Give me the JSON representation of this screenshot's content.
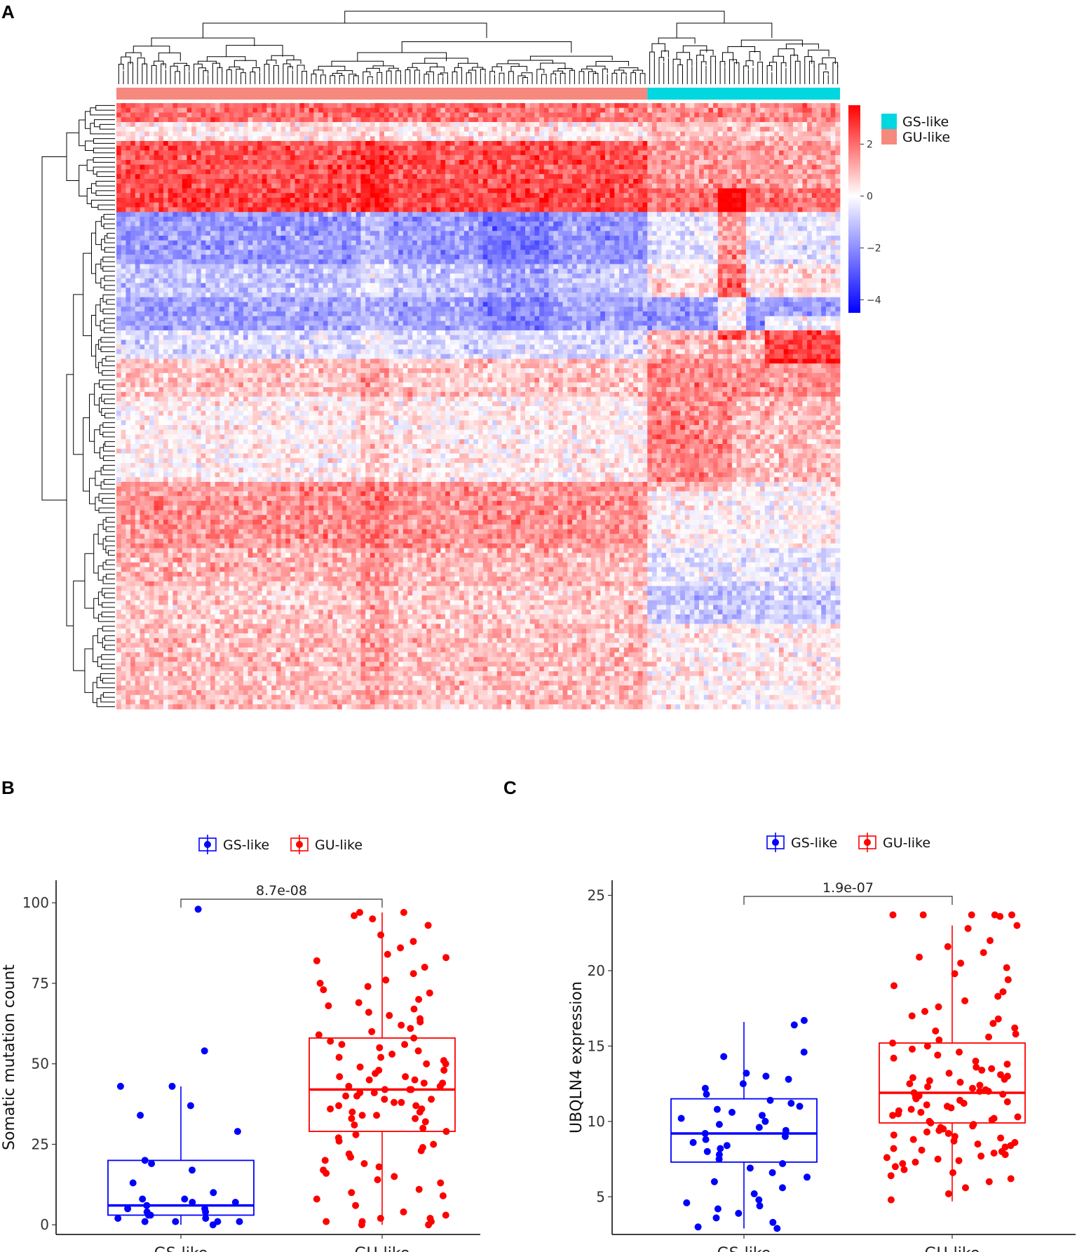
{
  "panels": {
    "a": "A",
    "b": "B",
    "c": "C"
  },
  "colors": {
    "gs": "#00d7e0",
    "gu": "#f6897e",
    "blue": "#0000ff",
    "red": "#ff0000",
    "white": "#ffffff"
  },
  "heatmap": {
    "groups": [
      "GS-like",
      "GU-like"
    ],
    "gu_columns": 113,
    "gs_columns": 41,
    "rows": 128,
    "colorbar_ticks": [
      "2",
      "0",
      "−2",
      "−4"
    ],
    "colorbar_values": [
      2,
      0,
      -2,
      -4
    ],
    "colorbar_range": [
      -4.5,
      3.5
    ]
  },
  "chart_data": [
    {
      "type": "box",
      "panel": "B",
      "ylabel": "Somatic mutation count",
      "categories": [
        "GS-like",
        "GU-like"
      ],
      "ylim": [
        -3,
        107
      ],
      "yticks": [
        0,
        25,
        50,
        75,
        100
      ],
      "pvalue": "8.7e-08",
      "legend": [
        "GS-like",
        "GU-like"
      ],
      "boxes": [
        {
          "group": "GS-like",
          "q1": 3,
          "median": 6,
          "q3": 20,
          "whisker_low": 0,
          "whisker_high": 43
        },
        {
          "group": "GU-like",
          "q1": 29,
          "median": 42,
          "q3": 58,
          "whisker_low": 0,
          "whisker_high": 97
        }
      ],
      "points": {
        "GS-like": [
          98,
          54,
          43,
          43,
          37,
          34,
          29,
          20,
          19,
          17,
          13,
          10,
          8,
          8,
          7,
          7,
          6,
          5,
          5,
          4,
          4,
          3,
          3,
          2,
          2,
          1,
          1,
          1,
          1,
          0
        ],
        "GU-like": [
          97,
          97,
          96,
          95,
          93,
          90,
          88,
          86,
          84,
          83,
          82,
          80,
          78,
          76,
          75,
          74,
          73,
          72,
          70,
          69,
          68,
          67,
          66,
          65,
          64,
          63,
          62,
          61,
          60,
          59,
          58,
          57,
          56,
          56,
          55,
          54,
          53,
          52,
          52,
          51,
          50,
          50,
          49,
          48,
          48,
          47,
          46,
          46,
          45,
          45,
          44,
          44,
          43,
          43,
          42,
          42,
          42,
          41,
          41,
          40,
          40,
          39,
          39,
          38,
          38,
          37,
          37,
          36,
          36,
          35,
          35,
          34,
          34,
          33,
          33,
          32,
          31,
          30,
          29,
          28,
          27,
          26,
          25,
          24,
          23,
          22,
          21,
          20,
          19,
          18,
          17,
          16,
          15,
          14,
          13,
          11,
          10,
          9,
          8,
          6,
          4,
          3,
          2,
          2,
          1,
          1,
          1,
          0,
          0
        ]
      }
    },
    {
      "type": "box",
      "panel": "C",
      "ylabel": "UBQLN4 expression",
      "categories": [
        "GS-like",
        "GU-like"
      ],
      "ylim": [
        2.5,
        26
      ],
      "yticks": [
        5,
        10,
        15,
        20,
        25
      ],
      "pvalue": "1.9e-07",
      "legend": [
        "GS-like",
        "GU-like"
      ],
      "boxes": [
        {
          "group": "GS-like",
          "q1": 7.3,
          "median": 9.2,
          "q3": 11.5,
          "whisker_low": 2.9,
          "whisker_high": 16.6
        },
        {
          "group": "GU-like",
          "q1": 9.9,
          "median": 11.9,
          "q3": 15.2,
          "whisker_low": 4.7,
          "whisker_high": 23.0
        }
      ],
      "points": {
        "GS-like": [
          16.7,
          16.4,
          14.6,
          14.3,
          13.2,
          13.0,
          12.8,
          12.5,
          12.2,
          11.8,
          11.4,
          11.2,
          11.0,
          10.8,
          10.6,
          10.4,
          10.2,
          10.0,
          9.8,
          9.6,
          9.4,
          9.2,
          9.0,
          8.8,
          8.6,
          8.4,
          8.2,
          8.0,
          7.8,
          7.5,
          7.2,
          6.9,
          6.6,
          6.3,
          6.0,
          5.6,
          5.2,
          4.8,
          4.6,
          4.4,
          4.2,
          3.9,
          3.6,
          3.3,
          3.0,
          2.9
        ],
        "GU-like": [
          23.7,
          23.7,
          23.7,
          23.7,
          23.7,
          23.6,
          23.0,
          22.8,
          22.0,
          21.6,
          21.2,
          20.9,
          20.5,
          20.2,
          19.8,
          19.4,
          19.0,
          18.6,
          18.3,
          18.0,
          17.6,
          17.3,
          17.0,
          16.8,
          16.5,
          16.2,
          16.0,
          15.8,
          15.6,
          15.4,
          15.2,
          15.0,
          14.8,
          14.6,
          14.4,
          14.2,
          14.0,
          13.8,
          13.6,
          13.5,
          13.4,
          13.2,
          13.1,
          13.0,
          12.9,
          12.8,
          12.7,
          12.6,
          12.5,
          12.4,
          12.3,
          12.2,
          12.1,
          12.0,
          12.0,
          11.9,
          11.8,
          11.7,
          11.6,
          11.5,
          11.4,
          11.3,
          11.2,
          11.1,
          11.0,
          10.9,
          10.8,
          10.7,
          10.6,
          10.5,
          10.4,
          10.3,
          10.2,
          10.1,
          10.0,
          9.9,
          9.8,
          9.7,
          9.6,
          9.5,
          9.4,
          9.3,
          9.2,
          9.1,
          9.0,
          8.9,
          8.8,
          8.7,
          8.6,
          8.5,
          8.4,
          8.3,
          8.2,
          8.1,
          8.0,
          7.9,
          7.8,
          7.7,
          7.6,
          7.5,
          7.4,
          7.3,
          7.2,
          7.0,
          6.8,
          6.6,
          6.4,
          6.2,
          6.0,
          5.6,
          5.2,
          4.8
        ]
      }
    }
  ]
}
